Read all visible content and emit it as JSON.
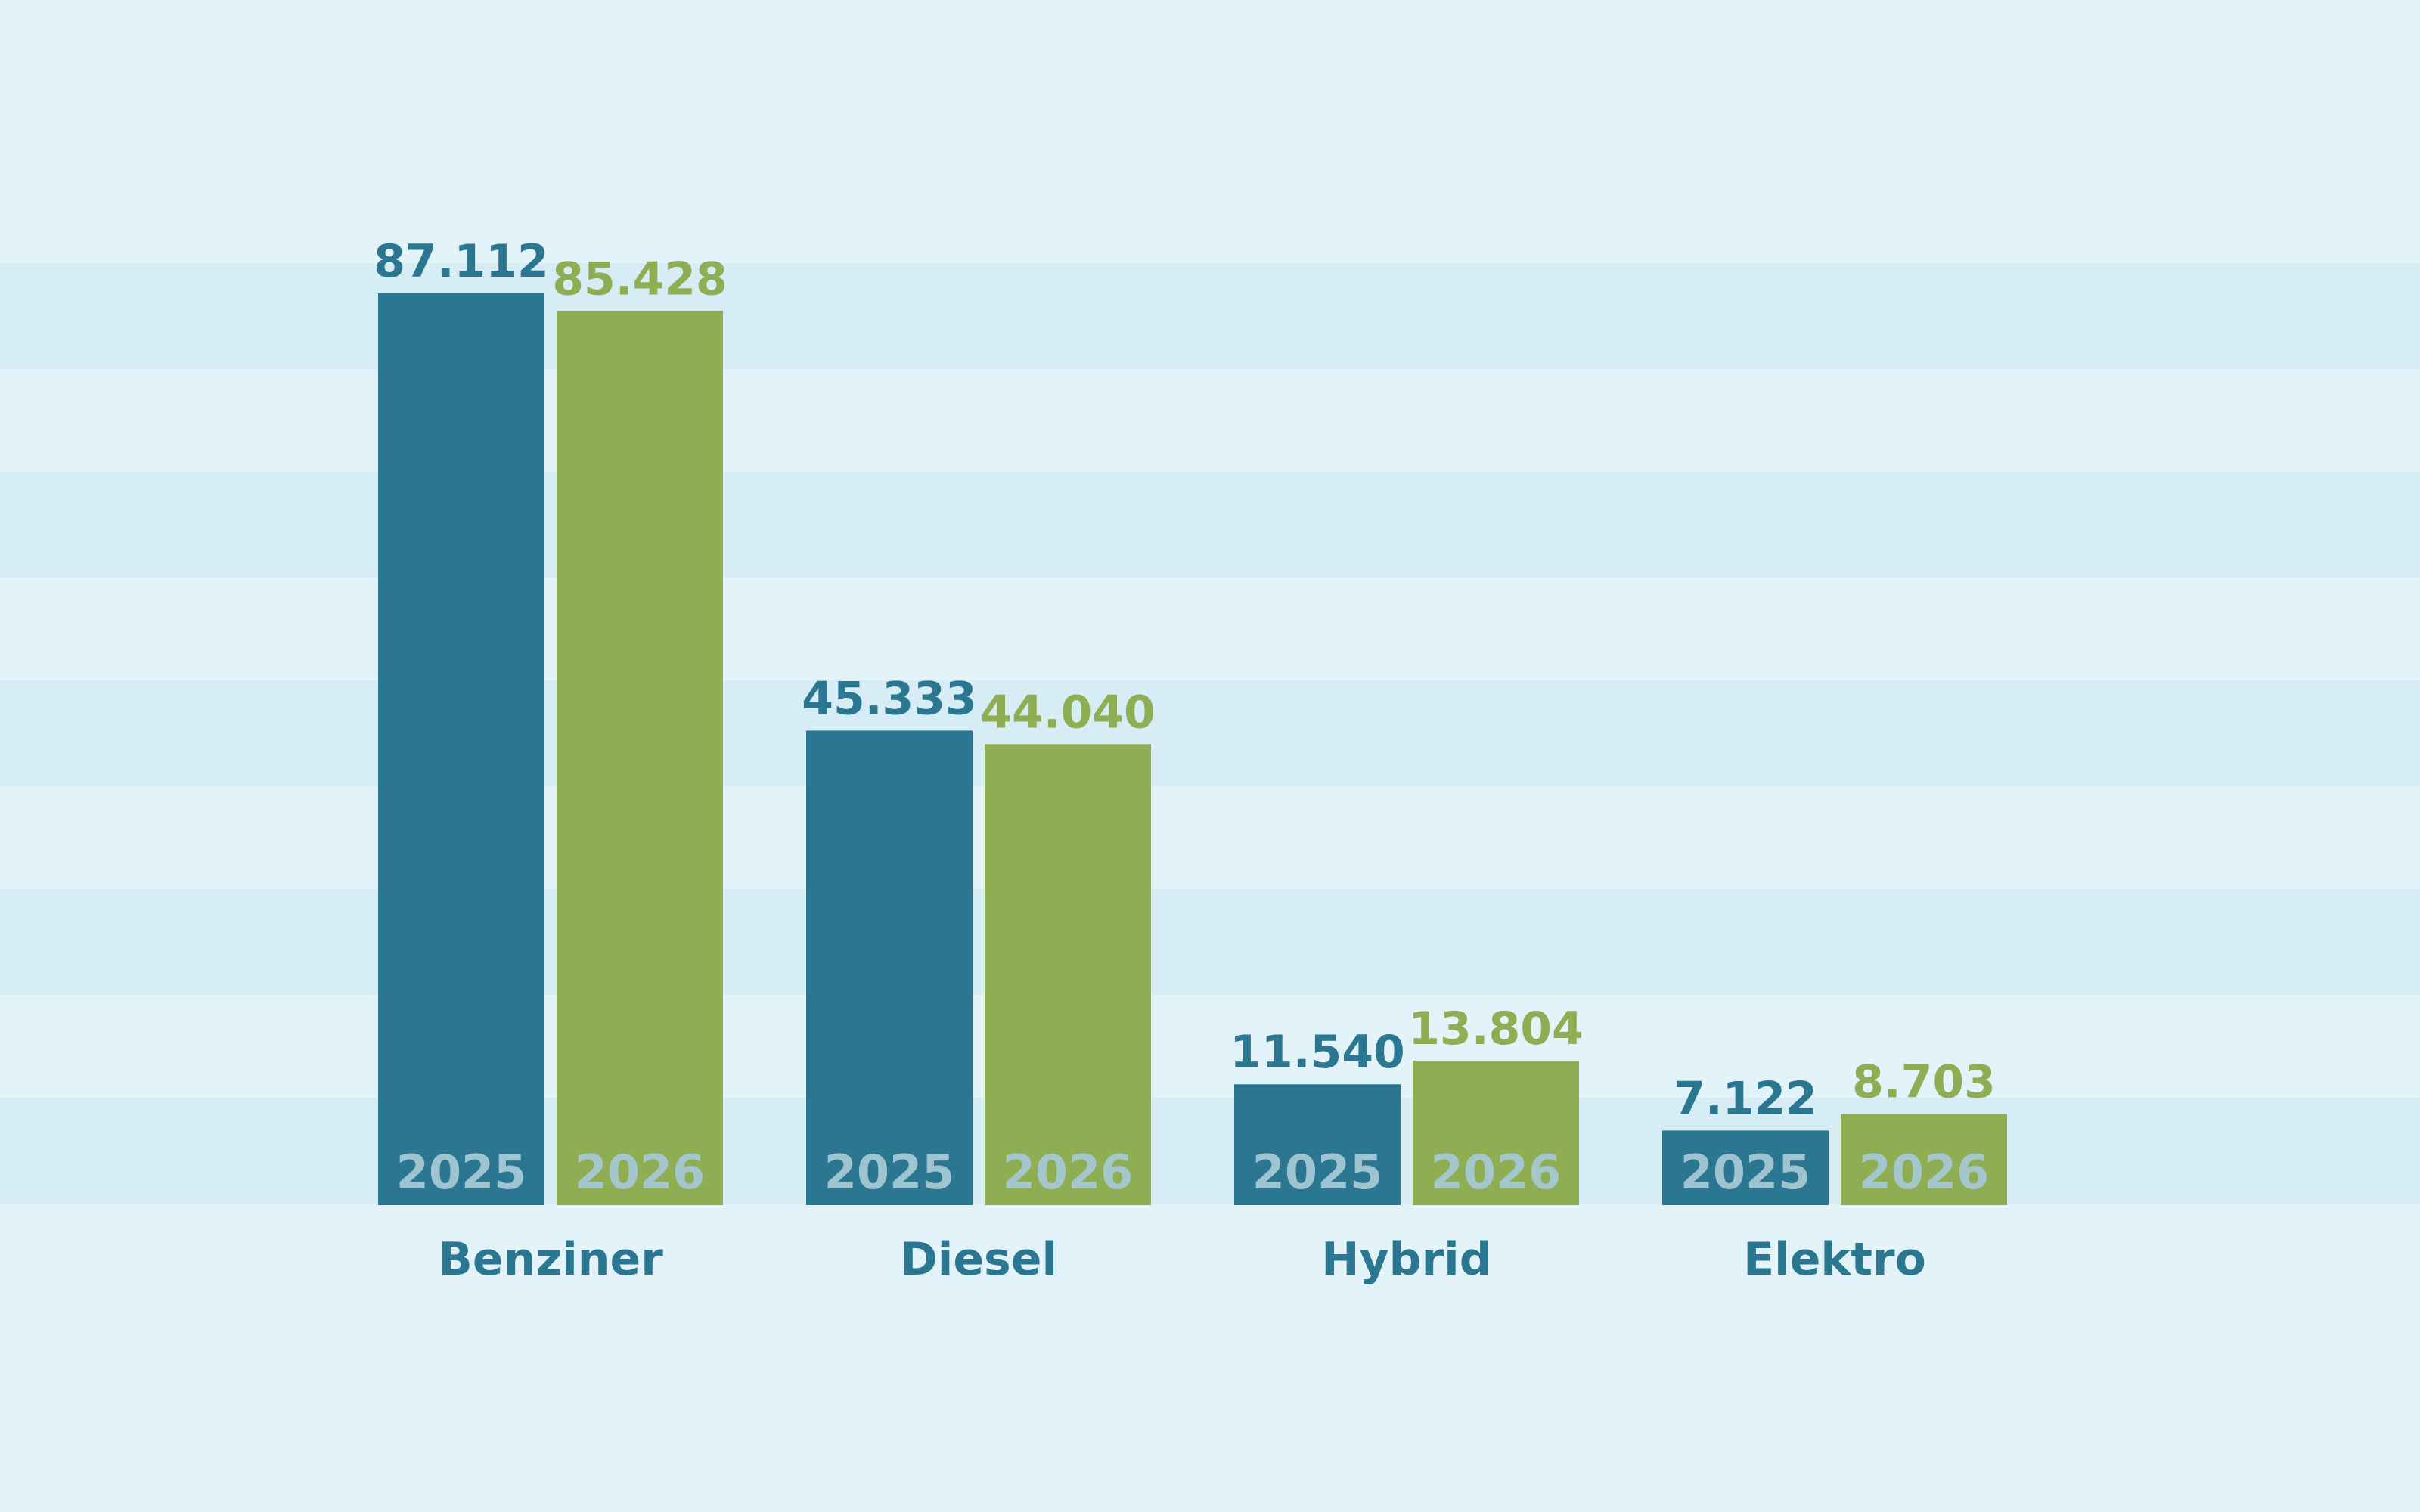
{
  "chart_data": {
    "type": "bar",
    "title": "",
    "xlabel": "",
    "ylabel": "",
    "categories": [
      "Benziner",
      "Diesel",
      "Hybrid",
      "Elektro"
    ],
    "series": [
      {
        "name": "2025",
        "values": [
          87112,
          45333,
          11540,
          7122
        ],
        "labels": [
          "87.112",
          "45.333",
          "11.540",
          "7.122"
        ],
        "color": "#2b7791"
      },
      {
        "name": "2026",
        "values": [
          85428,
          44040,
          13804,
          8703
        ],
        "labels": [
          "85.428",
          "44.040",
          "13.804",
          "8.703"
        ],
        "color": "#8fad52"
      }
    ],
    "ylim": [
      0,
      100000
    ],
    "grid": false,
    "background": "#e3f3fa",
    "band_color": "#d6edf6",
    "year_label_color": "#a6c9d5"
  }
}
